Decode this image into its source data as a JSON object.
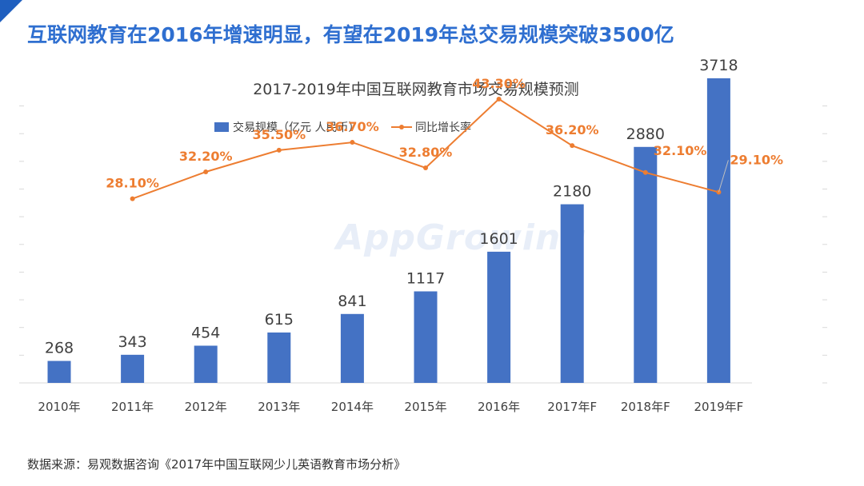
{
  "header": {
    "title": "互联网教育在2016年增速明显，有望在2019年总交易规模突破3500亿"
  },
  "watermark": {
    "text": "AppGrowing"
  },
  "source": {
    "text": "数据来源：易观数据咨询《2017年中国互联网少儿英语教育市场分析》"
  },
  "colors": {
    "bar": "#4472c4",
    "line": "#ed7d31",
    "title": "#2f6fd0"
  },
  "chart_data": {
    "type": "bar",
    "title": "2017-2019年中国互联网教育市场交易规模预测",
    "categories": [
      "2010年",
      "2011年",
      "2012年",
      "2013年",
      "2014年",
      "2015年",
      "2016年",
      "2017年F",
      "2018年F",
      "2019年F"
    ],
    "series": [
      {
        "name": "交易规模（亿元 人民币）",
        "type": "bar",
        "values": [
          268,
          343,
          454,
          615,
          841,
          1117,
          1601,
          2180,
          2880,
          3718
        ],
        "labels": [
          "268",
          "343",
          "454",
          "615",
          "841",
          "1117",
          "1601",
          "2180",
          "2880",
          "3718"
        ]
      },
      {
        "name": "同比增长率",
        "type": "line",
        "axis": "secondary",
        "values": [
          null,
          28.1,
          32.2,
          35.5,
          36.7,
          32.8,
          43.3,
          36.2,
          32.1,
          29.1
        ],
        "labels": [
          "",
          "28.10%",
          "32.20%",
          "35.50%",
          "36.70%",
          "32.80%",
          "43.30%",
          "36.20%",
          "32.10%",
          "29.10%"
        ]
      }
    ],
    "ylim": [
      0,
      4000
    ],
    "y2lim": [
      0,
      50
    ],
    "legend_position": "top-center",
    "grid": false
  }
}
